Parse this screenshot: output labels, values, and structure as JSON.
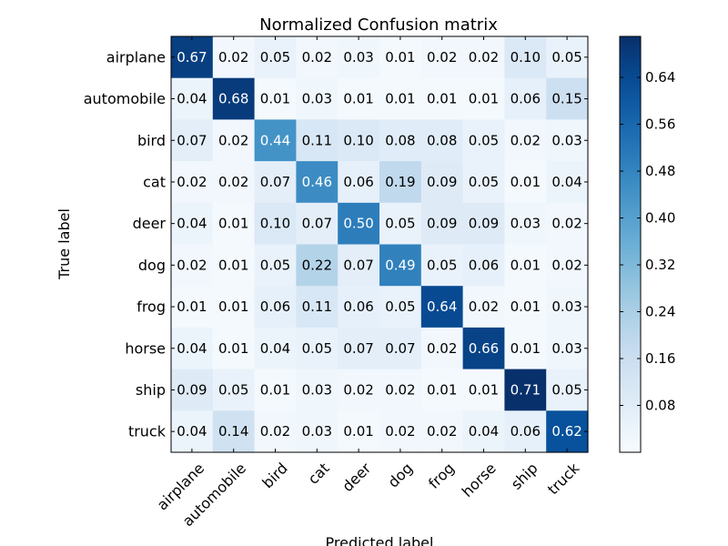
{
  "chart_data": {
    "type": "heatmap",
    "title": "Normalized Confusion matrix",
    "xlabel": "Predicted label",
    "ylabel": "True label",
    "x_categories": [
      "airplane",
      "automobile",
      "bird",
      "cat",
      "deer",
      "dog",
      "frog",
      "horse",
      "ship",
      "truck"
    ],
    "y_categories": [
      "airplane",
      "automobile",
      "bird",
      "cat",
      "deer",
      "dog",
      "frog",
      "horse",
      "ship",
      "truck"
    ],
    "values": [
      [
        0.67,
        0.02,
        0.05,
        0.02,
        0.03,
        0.01,
        0.02,
        0.02,
        0.1,
        0.05
      ],
      [
        0.04,
        0.68,
        0.01,
        0.03,
        0.01,
        0.01,
        0.01,
        0.01,
        0.06,
        0.15
      ],
      [
        0.07,
        0.02,
        0.44,
        0.11,
        0.1,
        0.08,
        0.08,
        0.05,
        0.02,
        0.03
      ],
      [
        0.02,
        0.02,
        0.07,
        0.46,
        0.06,
        0.19,
        0.09,
        0.05,
        0.01,
        0.04
      ],
      [
        0.04,
        0.01,
        0.1,
        0.07,
        0.5,
        0.05,
        0.09,
        0.09,
        0.03,
        0.02
      ],
      [
        0.02,
        0.01,
        0.05,
        0.22,
        0.07,
        0.49,
        0.05,
        0.06,
        0.01,
        0.02
      ],
      [
        0.01,
        0.01,
        0.06,
        0.11,
        0.06,
        0.05,
        0.64,
        0.02,
        0.01,
        0.03
      ],
      [
        0.04,
        0.01,
        0.04,
        0.05,
        0.07,
        0.07,
        0.02,
        0.66,
        0.01,
        0.03
      ],
      [
        0.09,
        0.05,
        0.01,
        0.03,
        0.02,
        0.02,
        0.01,
        0.01,
        0.71,
        0.05
      ],
      [
        0.04,
        0.14,
        0.02,
        0.03,
        0.01,
        0.02,
        0.02,
        0.04,
        0.06,
        0.62
      ]
    ],
    "colormap": "Blues",
    "color_range": [
      0,
      0.71
    ],
    "colorbar_ticks": [
      "0.08",
      "0.16",
      "0.24",
      "0.32",
      "0.40",
      "0.48",
      "0.56",
      "0.64"
    ],
    "colors": {
      "low": "#f7fbff",
      "high": "#08306b",
      "text_dark": "#000000",
      "text_light": "#ffffff"
    }
  }
}
